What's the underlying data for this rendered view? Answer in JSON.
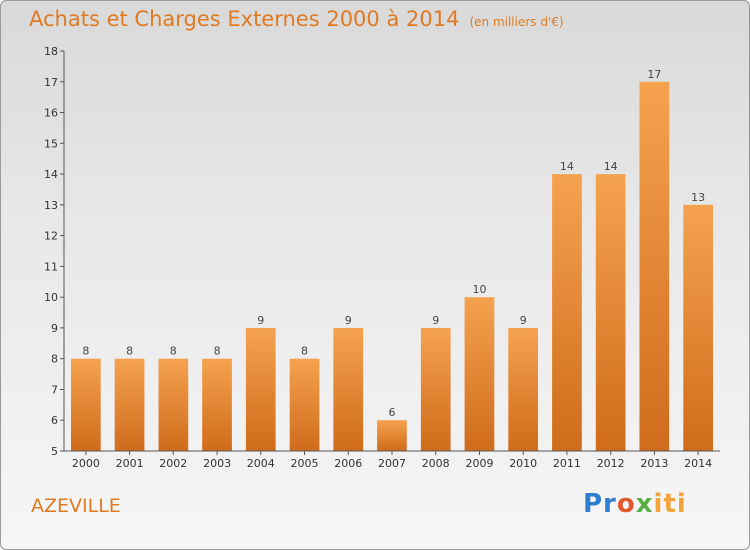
{
  "chart_data": {
    "type": "bar",
    "title": "Achats et Charges Externes 2000 à 2014",
    "subtitle": "(en milliers d'€)",
    "xlabel": "",
    "ylabel": "",
    "categories": [
      "2000",
      "2001",
      "2002",
      "2003",
      "2004",
      "2005",
      "2006",
      "2007",
      "2008",
      "2009",
      "2010",
      "2011",
      "2012",
      "2013",
      "2014"
    ],
    "values": [
      8,
      8,
      8,
      8,
      9,
      8,
      9,
      6,
      9,
      10,
      9,
      14,
      14,
      17,
      13
    ],
    "ylim": [
      5,
      18
    ],
    "yticks": [
      5,
      6,
      7,
      8,
      9,
      10,
      11,
      12,
      13,
      14,
      15,
      16,
      17,
      18
    ],
    "grid": false,
    "bar_color": "#f0913c",
    "bar_color_dark": "#cf6c1b"
  },
  "footer": {
    "town": "AZEVILLE",
    "logo_letters": [
      "Pr",
      "o",
      "x",
      "iti"
    ]
  },
  "colors": {
    "title": "#e07a22",
    "axis": "#555555"
  }
}
